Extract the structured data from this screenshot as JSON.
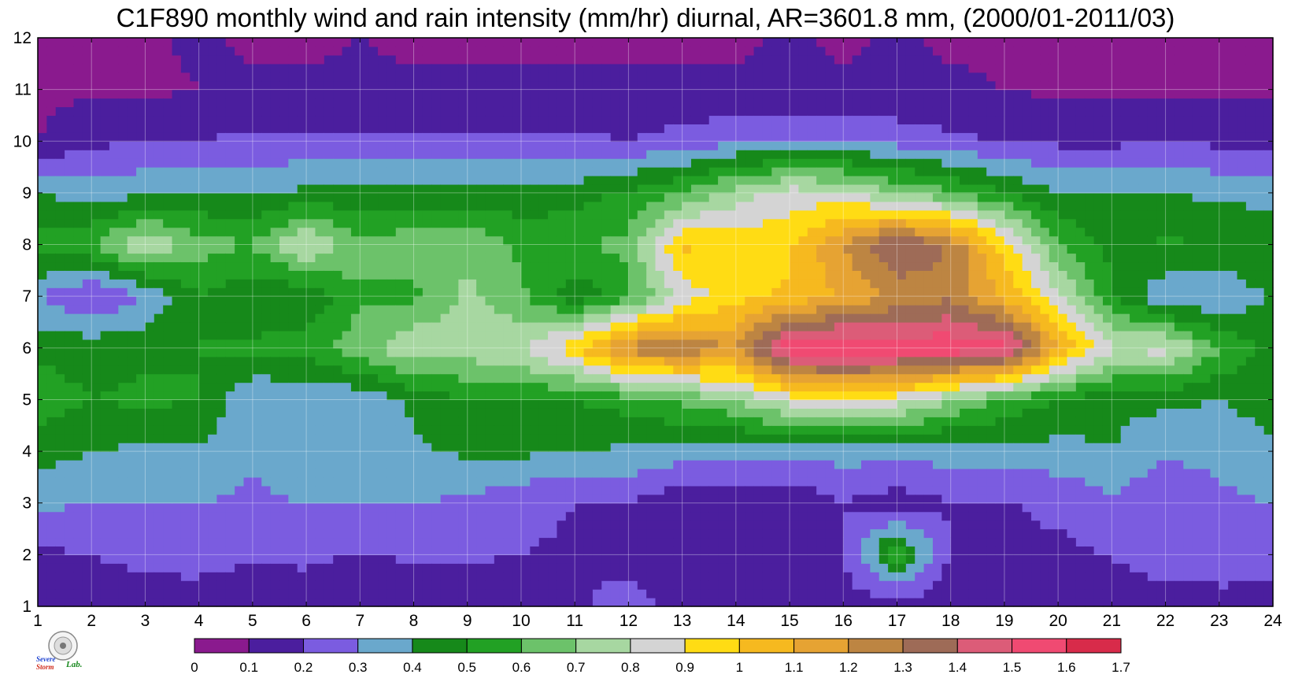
{
  "chart_data": {
    "type": "heatmap",
    "title": "C1F890 monthly wind and rain intensity (mm/hr) diurnal, AR=3601.8 mm, (2000/01-2011/03)",
    "xlabel": "",
    "ylabel": "",
    "x_ticks": [
      "1",
      "2",
      "3",
      "4",
      "5",
      "6",
      "7",
      "8",
      "9",
      "10",
      "11",
      "12",
      "13",
      "14",
      "15",
      "16",
      "17",
      "18",
      "19",
      "20",
      "21",
      "22",
      "23",
      "24"
    ],
    "y_ticks": [
      "1",
      "2",
      "3",
      "4",
      "5",
      "6",
      "7",
      "8",
      "9",
      "10",
      "11",
      "12"
    ],
    "xlim": [
      1,
      24
    ],
    "ylim": [
      1,
      12
    ],
    "grid": true,
    "colorbar": {
      "levels": [
        "0",
        "0.1",
        "0.2",
        "0.3",
        "0.4",
        "0.5",
        "0.6",
        "0.7",
        "0.8",
        "0.9",
        "1",
        "1.1",
        "1.2",
        "1.3",
        "1.4",
        "1.5",
        "1.6",
        "1.7"
      ],
      "colors": [
        "#8a1a8e",
        "#4b1e9e",
        "#7b5ce0",
        "#6aa8cc",
        "#16891a",
        "#22a124",
        "#6cc26a",
        "#a7d7a1",
        "#d4d4d4",
        "#ffdc14",
        "#f6b91f",
        "#e6a333",
        "#bd8542",
        "#9e6b57",
        "#dc5c78",
        "#f04a72",
        "#d82b4a"
      ],
      "placement": "bottom"
    },
    "x": [
      1,
      2,
      3,
      4,
      5,
      6,
      7,
      8,
      9,
      10,
      11,
      12,
      13,
      14,
      15,
      16,
      17,
      18,
      19,
      20,
      21,
      22,
      23,
      24
    ],
    "y": [
      1,
      2,
      3,
      4,
      5,
      6,
      7,
      8,
      9,
      10,
      11,
      12
    ],
    "z": [
      [
        0.12,
        0.12,
        0.13,
        0.15,
        0.12,
        0.12,
        0.1,
        0.12,
        0.13,
        0.15,
        0.19,
        0.23,
        0.17,
        0.2,
        0.17,
        0.15,
        0.12,
        0.15,
        0.17,
        0.14,
        0.14,
        0.12,
        0.13,
        0.15
      ],
      [
        0.18,
        0.2,
        0.24,
        0.24,
        0.21,
        0.23,
        0.19,
        0.22,
        0.21,
        0.2,
        0.19,
        0.18,
        0.16,
        0.1,
        0.18,
        0.19,
        0.58,
        0.18,
        0.2,
        0.18,
        0.2,
        0.28,
        0.3,
        0.25
      ],
      [
        0.32,
        0.3,
        0.3,
        0.3,
        0.28,
        0.3,
        0.3,
        0.3,
        0.28,
        0.22,
        0.2,
        0.2,
        0.12,
        0.12,
        0.1,
        0.2,
        0.14,
        0.2,
        0.19,
        0.22,
        0.28,
        0.2,
        0.28,
        0.3
      ],
      [
        0.45,
        0.4,
        0.38,
        0.38,
        0.32,
        0.38,
        0.32,
        0.38,
        0.42,
        0.42,
        0.4,
        0.38,
        0.35,
        0.34,
        0.34,
        0.34,
        0.34,
        0.34,
        0.36,
        0.36,
        0.4,
        0.32,
        0.33,
        0.38
      ],
      [
        0.55,
        0.5,
        0.52,
        0.5,
        0.3,
        0.32,
        0.32,
        0.42,
        0.5,
        0.5,
        0.5,
        0.55,
        0.62,
        0.7,
        0.85,
        0.9,
        0.85,
        0.7,
        0.58,
        0.5,
        0.42,
        0.42,
        0.4,
        0.45
      ],
      [
        0.48,
        0.46,
        0.48,
        0.5,
        0.52,
        0.55,
        0.66,
        0.78,
        0.76,
        0.8,
        0.98,
        1.25,
        1.28,
        1.2,
        1.58,
        1.62,
        1.58,
        1.58,
        1.56,
        1.1,
        0.82,
        0.84,
        0.6,
        0.46
      ],
      [
        0.3,
        0.18,
        0.3,
        0.5,
        0.42,
        0.42,
        0.58,
        0.58,
        0.72,
        0.62,
        0.42,
        0.58,
        0.84,
        0.96,
        1.02,
        1.12,
        1.22,
        1.28,
        1.08,
        0.82,
        0.52,
        0.3,
        0.3,
        0.42
      ],
      [
        0.55,
        0.6,
        0.8,
        0.65,
        0.6,
        0.82,
        0.64,
        0.66,
        0.68,
        0.58,
        0.6,
        0.62,
        1.02,
        0.96,
        0.98,
        1.2,
        1.42,
        1.28,
        0.96,
        0.62,
        0.46,
        0.52,
        0.48,
        0.5
      ],
      [
        0.4,
        0.35,
        0.38,
        0.4,
        0.4,
        0.42,
        0.42,
        0.44,
        0.44,
        0.42,
        0.45,
        0.52,
        0.6,
        0.75,
        0.85,
        0.82,
        0.7,
        0.62,
        0.5,
        0.4,
        0.4,
        0.4,
        0.38,
        0.36
      ],
      [
        0.1,
        0.18,
        0.2,
        0.2,
        0.22,
        0.22,
        0.22,
        0.22,
        0.22,
        0.22,
        0.22,
        0.2,
        0.24,
        0.28,
        0.3,
        0.3,
        0.26,
        0.22,
        0.2,
        0.18,
        0.18,
        0.2,
        0.18,
        0.18
      ],
      [
        0.08,
        0.08,
        0.08,
        0.1,
        0.12,
        0.12,
        0.12,
        0.12,
        0.12,
        0.12,
        0.12,
        0.12,
        0.12,
        0.12,
        0.12,
        0.12,
        0.12,
        0.12,
        0.1,
        0.08,
        0.08,
        0.08,
        0.08,
        0.08
      ],
      [
        0.08,
        0.08,
        0.08,
        0.12,
        0.08,
        0.08,
        0.1,
        0.08,
        0.08,
        0.08,
        0.08,
        0.08,
        0.08,
        0.08,
        0.12,
        0.08,
        0.12,
        0.08,
        0.08,
        0.08,
        0.08,
        0.08,
        0.08,
        0.08
      ]
    ]
  },
  "logo": {
    "text_severe": "Severe",
    "text_storm": "Storm",
    "text_lab": "Lab."
  }
}
